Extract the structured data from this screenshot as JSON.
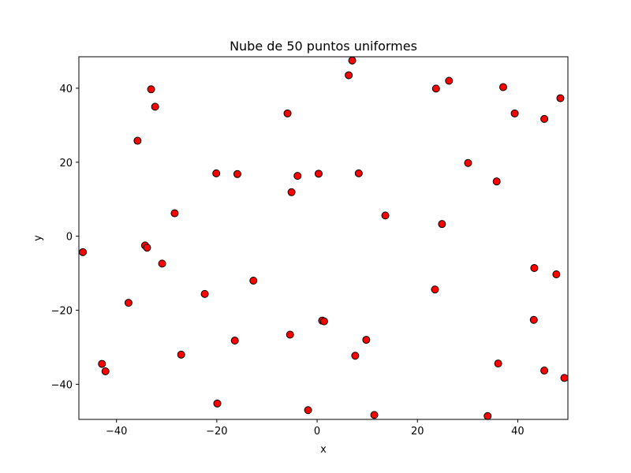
{
  "chart_data": {
    "type": "scatter",
    "title": "Nube de 50 puntos uniformes",
    "xlabel": "x",
    "ylabel": "y",
    "xlim": [
      -47.5,
      50
    ],
    "ylim": [
      -49.5,
      48.5
    ],
    "xticks": [
      -40,
      -20,
      0,
      20,
      40
    ],
    "yticks": [
      -40,
      -20,
      0,
      20,
      40
    ],
    "tick_labels_x": [
      "−40",
      "−20",
      "0",
      "20",
      "40"
    ],
    "tick_labels_y": [
      "−40",
      "−20",
      "0",
      "20",
      "40"
    ],
    "grid": false,
    "marker_color": "#ff0000",
    "marker_edge_color": "#000000",
    "points": [
      {
        "x": 7.0,
        "y": 47.5
      },
      {
        "x": 6.3,
        "y": 43.5
      },
      {
        "x": -33.1,
        "y": 39.7
      },
      {
        "x": -32.3,
        "y": 35.0
      },
      {
        "x": 23.7,
        "y": 39.9
      },
      {
        "x": 26.3,
        "y": 42.0
      },
      {
        "x": 37.1,
        "y": 40.3
      },
      {
        "x": 48.5,
        "y": 37.3
      },
      {
        "x": 39.4,
        "y": 33.2
      },
      {
        "x": 45.3,
        "y": 31.7
      },
      {
        "x": -5.9,
        "y": 33.2
      },
      {
        "x": -35.8,
        "y": 25.8
      },
      {
        "x": -20.1,
        "y": 17.0
      },
      {
        "x": -15.9,
        "y": 16.8
      },
      {
        "x": -3.9,
        "y": 16.3
      },
      {
        "x": 0.3,
        "y": 16.9
      },
      {
        "x": 8.3,
        "y": 17.0
      },
      {
        "x": 30.1,
        "y": 19.8
      },
      {
        "x": 35.8,
        "y": 14.8
      },
      {
        "x": -5.1,
        "y": 11.9
      },
      {
        "x": -28.4,
        "y": 6.2
      },
      {
        "x": 13.6,
        "y": 5.6
      },
      {
        "x": 24.9,
        "y": 3.3
      },
      {
        "x": -46.7,
        "y": -4.3
      },
      {
        "x": -34.3,
        "y": -2.5
      },
      {
        "x": -33.9,
        "y": -3.1
      },
      {
        "x": -30.9,
        "y": -7.4
      },
      {
        "x": -12.7,
        "y": -12.0
      },
      {
        "x": -22.4,
        "y": -15.6
      },
      {
        "x": -37.6,
        "y": -18.0
      },
      {
        "x": 23.5,
        "y": -14.4
      },
      {
        "x": 43.3,
        "y": -8.6
      },
      {
        "x": 47.7,
        "y": -10.3
      },
      {
        "x": 43.2,
        "y": -22.6
      },
      {
        "x": 1.0,
        "y": -22.8
      },
      {
        "x": 1.4,
        "y": -23.0
      },
      {
        "x": -5.4,
        "y": -26.6
      },
      {
        "x": -16.4,
        "y": -28.2
      },
      {
        "x": 9.8,
        "y": -28.0
      },
      {
        "x": -27.1,
        "y": -32.0
      },
      {
        "x": 7.6,
        "y": -32.3
      },
      {
        "x": 36.1,
        "y": -34.4
      },
      {
        "x": 45.3,
        "y": -36.3
      },
      {
        "x": -42.9,
        "y": -34.5
      },
      {
        "x": -42.2,
        "y": -36.5
      },
      {
        "x": 49.3,
        "y": -38.3
      },
      {
        "x": -19.9,
        "y": -45.2
      },
      {
        "x": -1.8,
        "y": -47.0
      },
      {
        "x": 11.4,
        "y": -48.3
      },
      {
        "x": 34.0,
        "y": -48.6
      }
    ]
  }
}
